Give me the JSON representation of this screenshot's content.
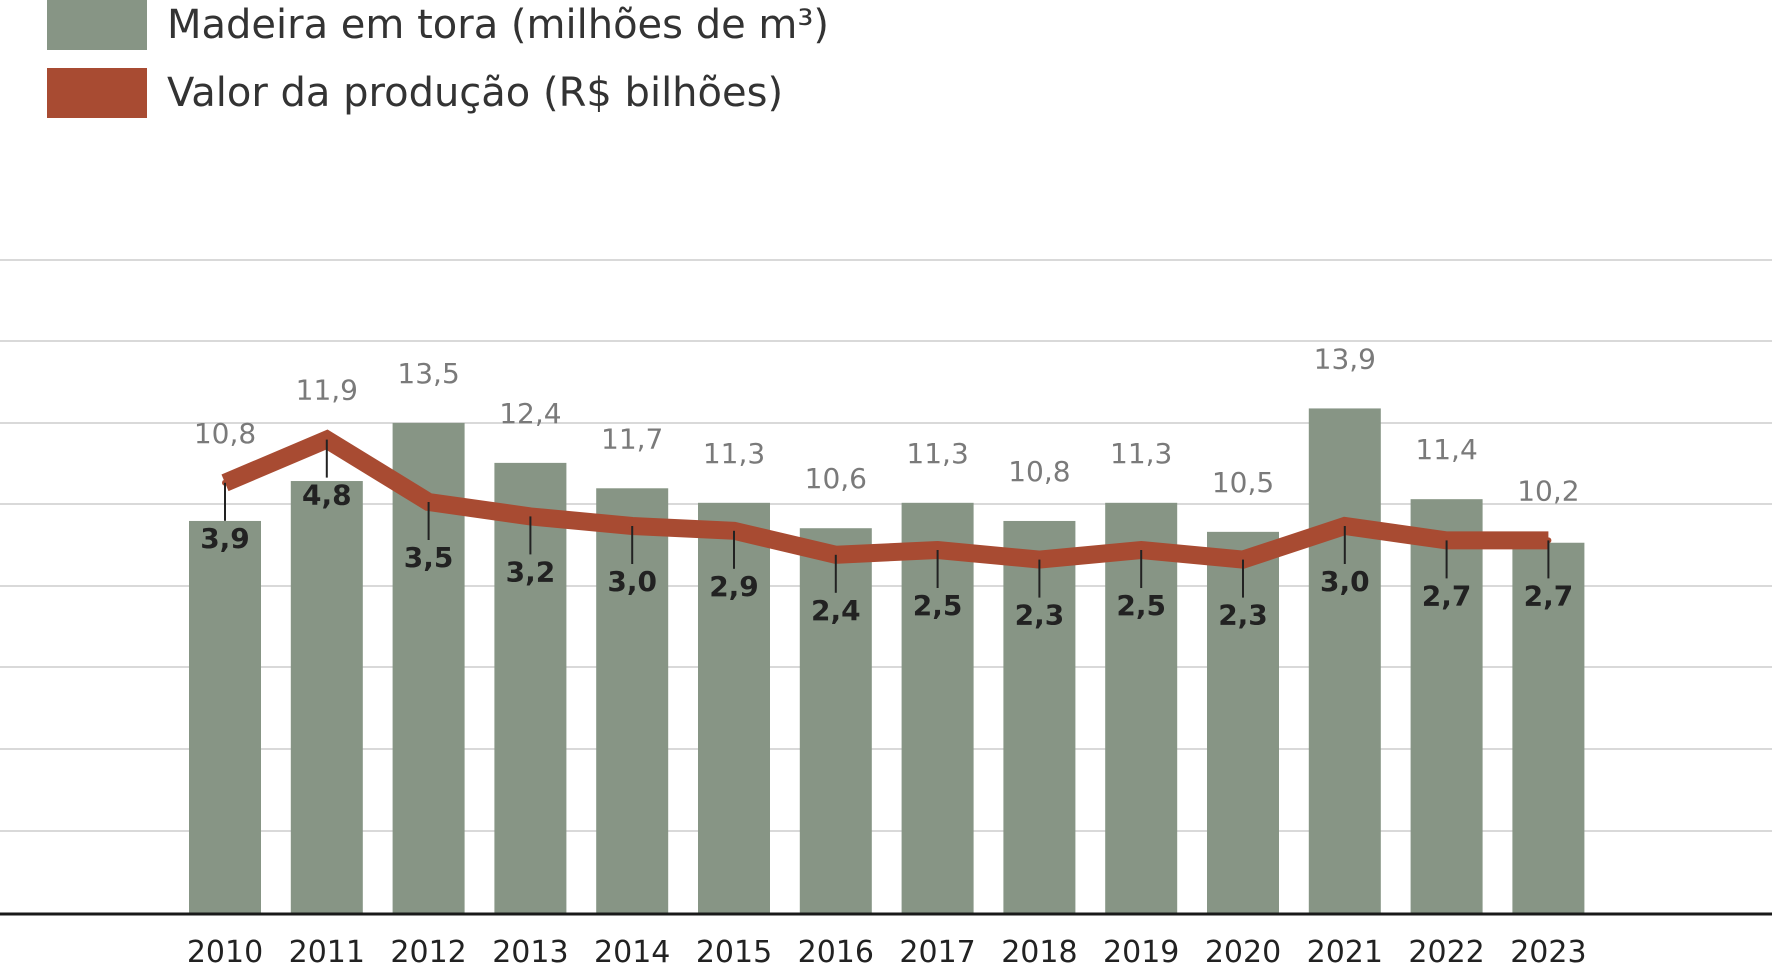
{
  "legend": {
    "bars_label": "Madeira em tora (milhões de m³)",
    "line_label": "Valor da produção (R$ bilhões)"
  },
  "colors": {
    "bar": "#879585",
    "line": "#a84b32",
    "grid": "#d9d9d9",
    "axis": "#1a1a1a"
  },
  "chart_data": {
    "type": "bar",
    "categories": [
      "2010",
      "2011",
      "2012",
      "2013",
      "2014",
      "2015",
      "2016",
      "2017",
      "2018",
      "2019",
      "2020",
      "2021",
      "2022",
      "2023"
    ],
    "series": [
      {
        "name": "Madeira em tora (milhões de m³)",
        "type": "bar",
        "values": [
          10.8,
          11.9,
          13.5,
          12.4,
          11.7,
          11.3,
          10.6,
          11.3,
          10.8,
          11.3,
          10.5,
          13.9,
          11.4,
          10.2
        ],
        "labels": [
          "10,8",
          "11,9",
          "13,5",
          "12,4",
          "11,7",
          "11,3",
          "10,6",
          "11,3",
          "10,8",
          "11,3",
          "10,5",
          "13,9",
          "11,4",
          "10,2"
        ]
      },
      {
        "name": "Valor da produção (R$ bilhões)",
        "type": "line",
        "values": [
          3.9,
          4.8,
          3.5,
          3.2,
          3.0,
          2.9,
          2.4,
          2.5,
          2.3,
          2.5,
          2.3,
          3.0,
          2.7,
          2.7
        ],
        "labels": [
          "3,9",
          "4,8",
          "3,5",
          "3,2",
          "3,0",
          "2,9",
          "2,4",
          "2,5",
          "2,3",
          "2,5",
          "2,3",
          "3,0",
          "2,7",
          "2,7"
        ]
      }
    ],
    "title": "",
    "xlabel": "",
    "ylabel": "",
    "grid": true,
    "legend_position": "top-left"
  }
}
